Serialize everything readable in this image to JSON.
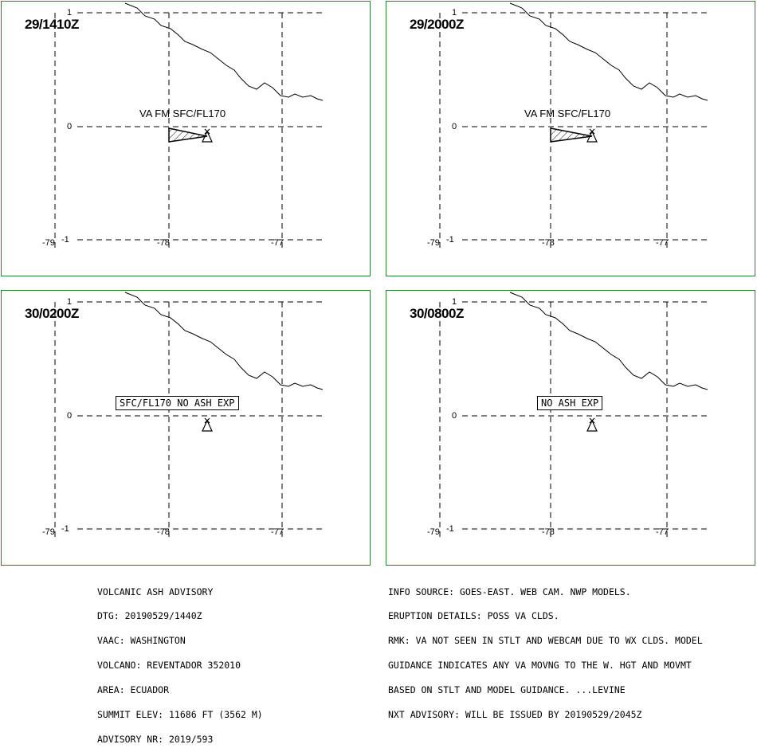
{
  "panels": [
    {
      "time": "29/1410Z",
      "label": "VA FM SFC/FL170",
      "label_style": "plain",
      "ash": true
    },
    {
      "time": "29/2000Z",
      "label": "VA FM SFC/FL170",
      "label_style": "plain",
      "ash": true
    },
    {
      "time": "30/0200Z",
      "label": "SFC/FL170 NO ASH EXP",
      "label_style": "boxed",
      "ash": false
    },
    {
      "time": "30/0800Z",
      "label": "NO ASH EXP",
      "label_style": "boxed",
      "ash": false
    }
  ],
  "axis": {
    "lat_top": "1",
    "lat_mid": "0",
    "lat_bottom": "-1",
    "lon_left": "-79",
    "lon_mid": "-78",
    "lon_right": "-77"
  },
  "advisory_left": [
    "VOLCANIC ASH ADVISORY",
    "DTG: 20190529/1440Z",
    "VAAC: WASHINGTON",
    "VOLCANO: REVENTADOR 352010",
    "AREA: ECUADOR",
    "SUMMIT ELEV: 11686 FT (3562 M)",
    "ADVISORY NR: 2019/593"
  ],
  "advisory_right": [
    "INFO SOURCE: GOES-EAST. WEB CAM. NWP MODELS.",
    "ERUPTION DETAILS: POSS VA CLDS.",
    "RMK: VA NOT SEEN IN STLT AND WEBCAM DUE TO WX CLDS. MODEL",
    "GUIDANCE INDICATES ANY VA MOVNG TO THE W. HGT AND MOVMT",
    "BASED ON STLT AND MODEL GUIDANCE. ...LEVINE",
    "NXT ADVISORY: WILL BE ISSUED BY 20190529/2045Z"
  ],
  "colors": {
    "panel_border": "#2e7d32",
    "lines": "#000000"
  }
}
